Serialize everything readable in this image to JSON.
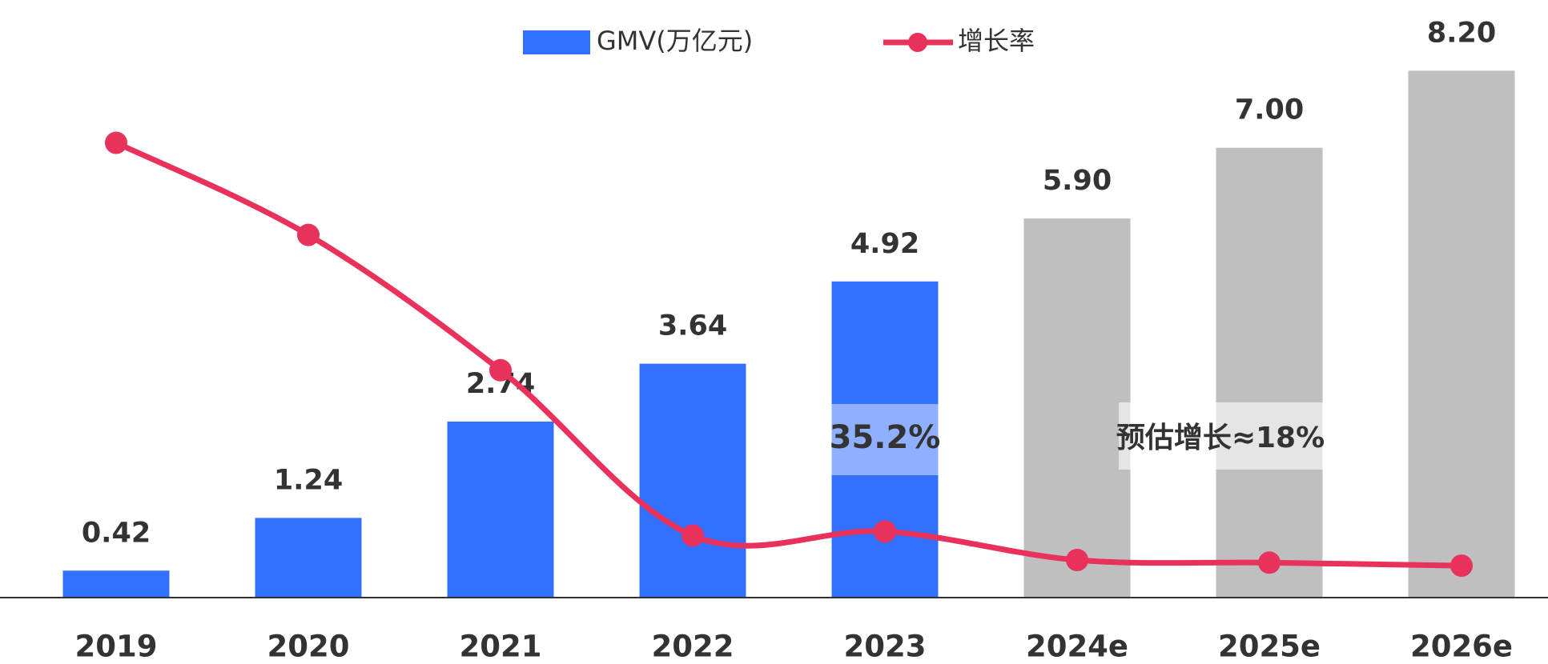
{
  "chart_data": {
    "type": "bar",
    "categories": [
      "2019",
      "2020",
      "2021",
      "2022",
      "2023",
      "2024e",
      "2025e",
      "2026e"
    ],
    "series": [
      {
        "name": "GMV(万亿元)",
        "type": "bar",
        "color": "#3370ff",
        "colors": [
          "#3370ff",
          "#3370ff",
          "#3370ff",
          "#3370ff",
          "#3370ff",
          "#bfbfbf",
          "#bfbfbf",
          "#bfbfbf"
        ],
        "values": [
          0.42,
          1.24,
          2.74,
          3.64,
          4.92,
          5.9,
          7,
          8.2
        ],
        "value_labels": [
          "0.42",
          "1.24",
          "2.74",
          "3.64",
          "4.92",
          "5.90",
          "7.00",
          "8.20"
        ]
      },
      {
        "name": "增长率",
        "type": "line",
        "color": "#e8315b",
        "axis": "y2",
        "values": [
          242,
          193,
          121,
          33,
          35.2,
          20,
          18.6,
          17
        ],
        "value_labels": [
          null,
          null,
          null,
          null,
          "35.2%",
          null,
          null,
          null
        ]
      }
    ],
    "annotations": [
      "预估增长≈18%"
    ],
    "ylim": [
      0,
      9.3
    ],
    "y2lim": [
      0,
      318
    ],
    "legend": "top"
  }
}
